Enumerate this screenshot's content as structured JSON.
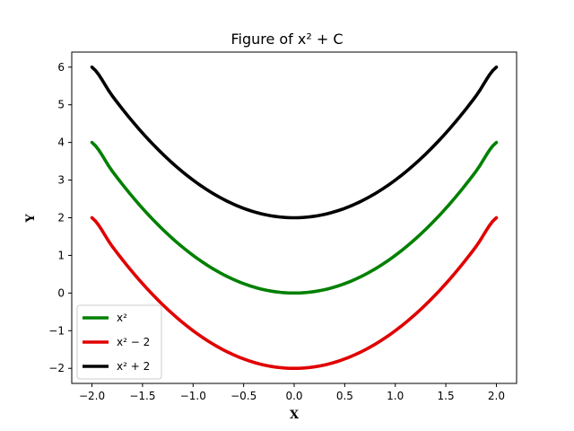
{
  "chart_data": {
    "type": "line",
    "title": "Figure of x² + C",
    "xlabel": "X",
    "ylabel": "Y",
    "xlim": [
      -2.2,
      2.2
    ],
    "ylim": [
      -2.4,
      6.4
    ],
    "xticks": [
      -2.0,
      -1.5,
      -1.0,
      -0.5,
      0.0,
      0.5,
      1.0,
      1.5,
      2.0
    ],
    "xtick_labels": [
      "−2.0",
      "−1.5",
      "−1.0",
      "−0.5",
      "0.0",
      "0.5",
      "1.0",
      "1.5",
      "2.0"
    ],
    "yticks": [
      -2,
      -1,
      0,
      1,
      2,
      3,
      4,
      5,
      6
    ],
    "ytick_labels": [
      "−2",
      "−1",
      "0",
      "1",
      "2",
      "3",
      "4",
      "5",
      "6"
    ],
    "grid": false,
    "legend_position": "bottom-left",
    "x": [
      -2.0,
      -1.8,
      -1.6,
      -1.4,
      -1.2,
      -1.0,
      -0.8,
      -0.6,
      -0.4,
      -0.2,
      0.0,
      0.2,
      0.4,
      0.6,
      0.8,
      1.0,
      1.2,
      1.4,
      1.6,
      1.8,
      2.0
    ],
    "series": [
      {
        "name": "x²",
        "color": "#008000",
        "values": [
          4.0,
          3.24,
          2.56,
          1.96,
          1.44,
          1.0,
          0.64,
          0.36,
          0.16,
          0.04,
          0.0,
          0.04,
          0.16,
          0.36,
          0.64,
          1.0,
          1.44,
          1.96,
          2.56,
          3.24,
          4.0
        ]
      },
      {
        "name": "x² − 2",
        "color": "#e00000",
        "values": [
          2.0,
          1.24,
          0.56,
          -0.04,
          -0.56,
          -1.0,
          -1.36,
          -1.64,
          -1.84,
          -1.96,
          -2.0,
          -1.96,
          -1.84,
          -1.64,
          -1.36,
          -1.0,
          -0.56,
          -0.04,
          0.56,
          1.24,
          2.0
        ]
      },
      {
        "name": "x² + 2",
        "color": "#000000",
        "values": [
          6.0,
          5.24,
          4.56,
          3.96,
          3.44,
          3.0,
          2.64,
          2.36,
          2.16,
          2.04,
          2.0,
          2.04,
          2.16,
          2.36,
          2.64,
          3.0,
          3.44,
          3.96,
          4.56,
          5.24,
          6.0
        ]
      }
    ]
  }
}
